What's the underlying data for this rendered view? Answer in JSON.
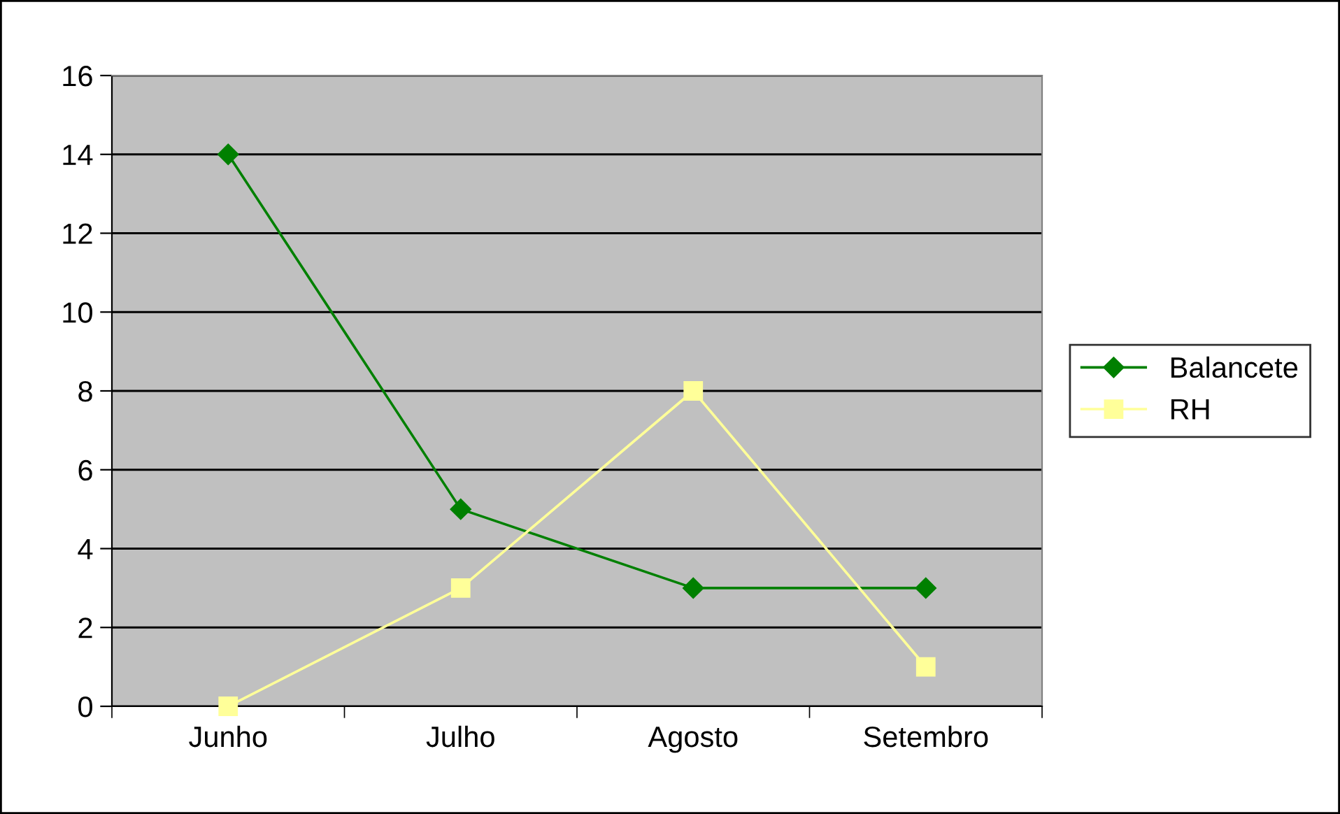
{
  "chart_data": {
    "type": "line",
    "categories": [
      "Junho",
      "Julho",
      "Agosto",
      "Setembro"
    ],
    "series": [
      {
        "name": "Balancete",
        "color": "#008000",
        "marker": "diamond",
        "values": [
          14,
          5,
          3,
          3
        ]
      },
      {
        "name": "RH",
        "color": "#ffff99",
        "marker": "square",
        "values": [
          0,
          3,
          8,
          1
        ]
      }
    ],
    "ylim": [
      0,
      16
    ],
    "yticks": [
      0,
      2,
      4,
      6,
      8,
      10,
      12,
      14,
      16
    ],
    "grid": "y",
    "legend": "right"
  }
}
